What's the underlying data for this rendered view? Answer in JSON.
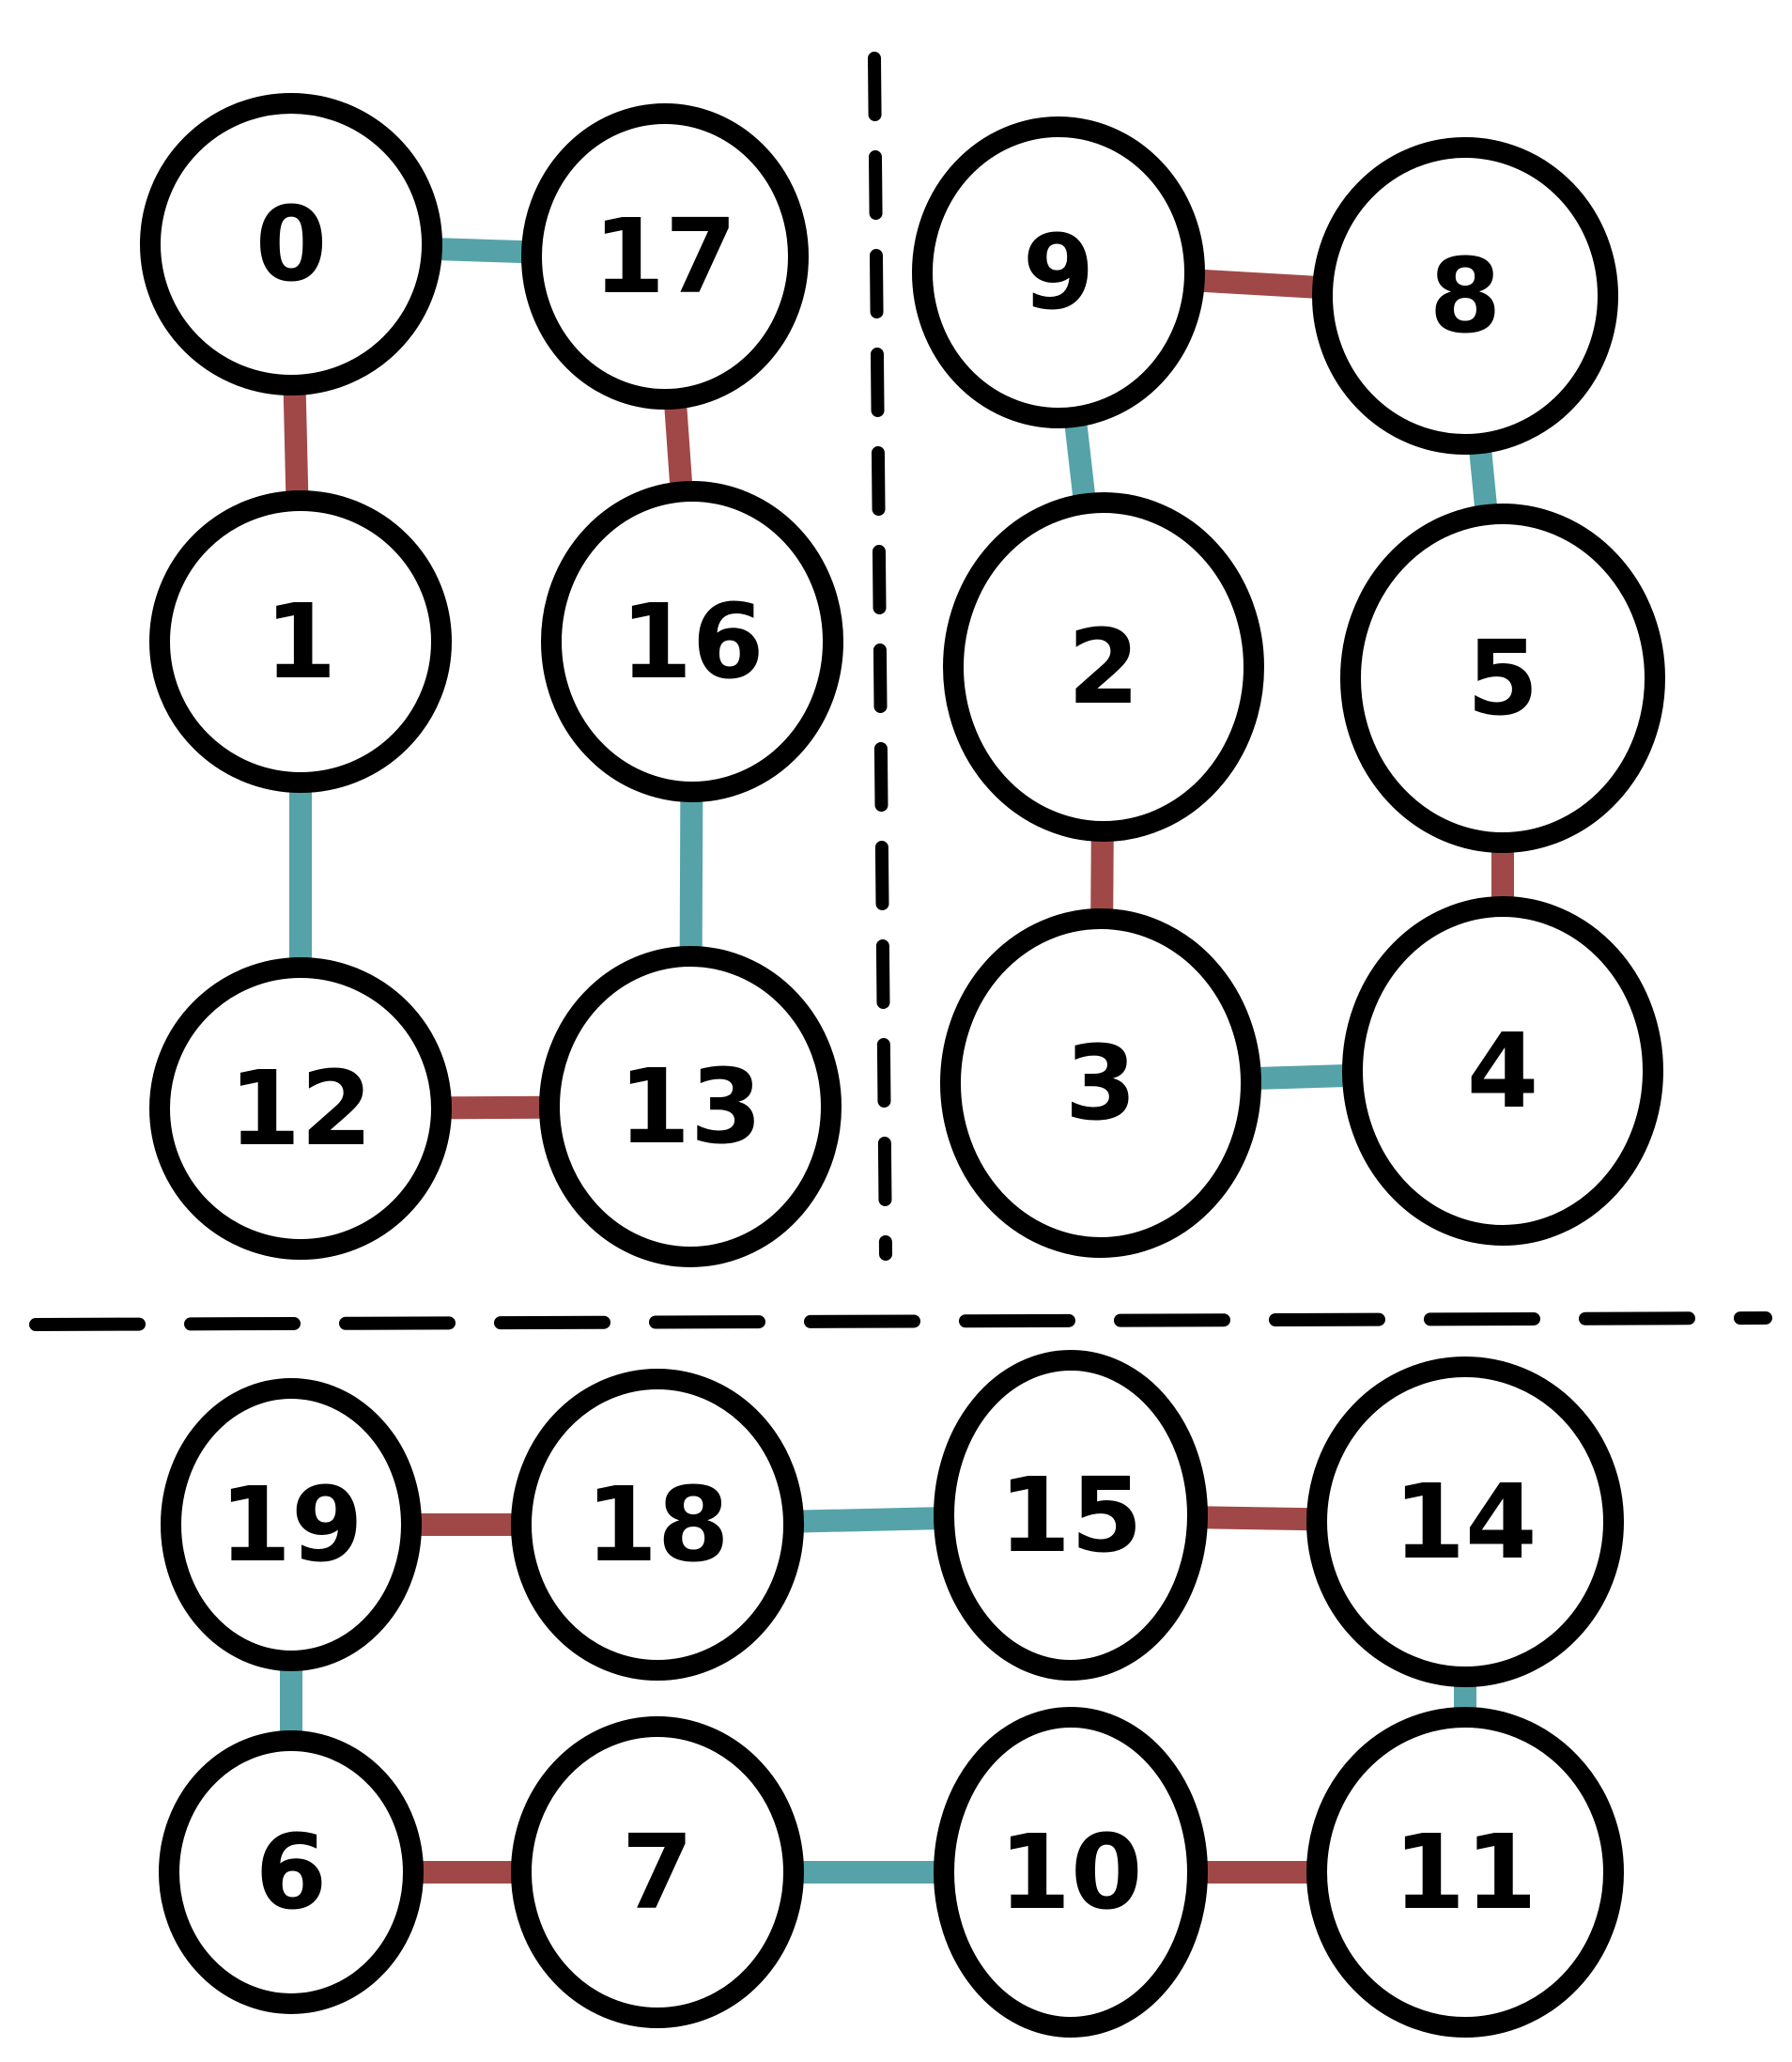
{
  "colors": {
    "edge_red": "#a04848",
    "edge_teal": "#55a3a8",
    "node_stroke": "#000000",
    "node_fill": "#ffffff",
    "divider": "#000000"
  },
  "nodes": [
    {
      "id": "0",
      "label": "0"
    },
    {
      "id": "17",
      "label": "17"
    },
    {
      "id": "9",
      "label": "9"
    },
    {
      "id": "8",
      "label": "8"
    },
    {
      "id": "1",
      "label": "1"
    },
    {
      "id": "16",
      "label": "16"
    },
    {
      "id": "2",
      "label": "2"
    },
    {
      "id": "5",
      "label": "5"
    },
    {
      "id": "12",
      "label": "12"
    },
    {
      "id": "13",
      "label": "13"
    },
    {
      "id": "3",
      "label": "3"
    },
    {
      "id": "4",
      "label": "4"
    },
    {
      "id": "19",
      "label": "19"
    },
    {
      "id": "18",
      "label": "18"
    },
    {
      "id": "15",
      "label": "15"
    },
    {
      "id": "14",
      "label": "14"
    },
    {
      "id": "6",
      "label": "6"
    },
    {
      "id": "7",
      "label": "7"
    },
    {
      "id": "10",
      "label": "10"
    },
    {
      "id": "11",
      "label": "11"
    }
  ],
  "edges": [
    {
      "from": "0",
      "to": "17",
      "color": "teal"
    },
    {
      "from": "0",
      "to": "1",
      "color": "red"
    },
    {
      "from": "17",
      "to": "16",
      "color": "red"
    },
    {
      "from": "1",
      "to": "12",
      "color": "teal"
    },
    {
      "from": "16",
      "to": "13",
      "color": "teal"
    },
    {
      "from": "12",
      "to": "13",
      "color": "red"
    },
    {
      "from": "9",
      "to": "8",
      "color": "red"
    },
    {
      "from": "9",
      "to": "2",
      "color": "teal"
    },
    {
      "from": "8",
      "to": "5",
      "color": "teal"
    },
    {
      "from": "2",
      "to": "3",
      "color": "red"
    },
    {
      "from": "5",
      "to": "4",
      "color": "red"
    },
    {
      "from": "3",
      "to": "4",
      "color": "teal"
    },
    {
      "from": "19",
      "to": "18",
      "color": "red"
    },
    {
      "from": "18",
      "to": "15",
      "color": "teal"
    },
    {
      "from": "15",
      "to": "14",
      "color": "red"
    },
    {
      "from": "19",
      "to": "6",
      "color": "teal"
    },
    {
      "from": "14",
      "to": "11",
      "color": "teal"
    },
    {
      "from": "6",
      "to": "7",
      "color": "red"
    },
    {
      "from": "7",
      "to": "10",
      "color": "teal"
    },
    {
      "from": "10",
      "to": "11",
      "color": "red"
    }
  ]
}
